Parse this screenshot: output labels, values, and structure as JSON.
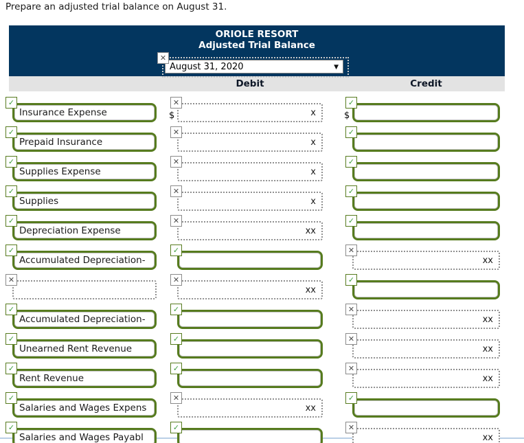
{
  "instruction": "Prepare an adjusted trial balance on August 31.",
  "header": {
    "company": "ORIOLE RESORT",
    "report": "Adjusted Trial Balance",
    "date_value": "August 31, 2020",
    "debit_label": "Debit",
    "credit_label": "Credit"
  },
  "currency_symbol": "$",
  "icons": {
    "check": "✓",
    "x": "✕",
    "dropdown_arrow": "▼"
  },
  "colors": {
    "header_navy": "#03365f",
    "subheader_gray": "#e3e3e3",
    "correct_green_border": "#567b1e",
    "check_green": "#3f9e3f",
    "crossed_gray_border": "#8f8f8f",
    "bottom_edge_blue": "#b9cfe6"
  },
  "rows": [
    {
      "account": {
        "state": "checked",
        "text": "Insurance Expense"
      },
      "debit": {
        "state": "crossed",
        "text": "x",
        "dollar": true
      },
      "credit": {
        "state": "checked",
        "text": "",
        "dollar": true
      }
    },
    {
      "account": {
        "state": "checked",
        "text": "Prepaid Insurance"
      },
      "debit": {
        "state": "crossed",
        "text": "x"
      },
      "credit": {
        "state": "checked",
        "text": ""
      }
    },
    {
      "account": {
        "state": "checked",
        "text": "Supplies Expense"
      },
      "debit": {
        "state": "crossed",
        "text": "x"
      },
      "credit": {
        "state": "checked",
        "text": ""
      }
    },
    {
      "account": {
        "state": "checked",
        "text": "Supplies"
      },
      "debit": {
        "state": "crossed",
        "text": "x"
      },
      "credit": {
        "state": "checked",
        "text": ""
      }
    },
    {
      "account": {
        "state": "checked",
        "text": "Depreciation Expense"
      },
      "debit": {
        "state": "crossed",
        "text": "xx"
      },
      "credit": {
        "state": "checked",
        "text": ""
      }
    },
    {
      "account": {
        "state": "checked",
        "text": "Accumulated Depreciation-"
      },
      "debit": {
        "state": "checked",
        "text": ""
      },
      "credit": {
        "state": "crossed",
        "text": "xx"
      }
    },
    {
      "account": {
        "state": "crossed",
        "text": ""
      },
      "debit": {
        "state": "crossed",
        "text": "xx"
      },
      "credit": {
        "state": "checked",
        "text": ""
      }
    },
    {
      "account": {
        "state": "checked",
        "text": "Accumulated Depreciation-"
      },
      "debit": {
        "state": "checked",
        "text": ""
      },
      "credit": {
        "state": "crossed",
        "text": "xx"
      }
    },
    {
      "account": {
        "state": "checked",
        "text": "Unearned Rent Revenue"
      },
      "debit": {
        "state": "checked",
        "text": ""
      },
      "credit": {
        "state": "crossed",
        "text": "xx"
      }
    },
    {
      "account": {
        "state": "checked",
        "text": "Rent Revenue"
      },
      "debit": {
        "state": "checked",
        "text": ""
      },
      "credit": {
        "state": "crossed",
        "text": "xx"
      }
    },
    {
      "account": {
        "state": "checked",
        "text": "Salaries and Wages Expens"
      },
      "debit": {
        "state": "crossed",
        "text": "xx"
      },
      "credit": {
        "state": "checked",
        "text": ""
      }
    },
    {
      "account": {
        "state": "checked",
        "text": "Salaries and Wages Payabl"
      },
      "debit": {
        "state": "checked",
        "text": ""
      },
      "credit": {
        "state": "crossed",
        "text": "xx"
      }
    }
  ],
  "layout_meta": {
    "row_count": 12
  }
}
